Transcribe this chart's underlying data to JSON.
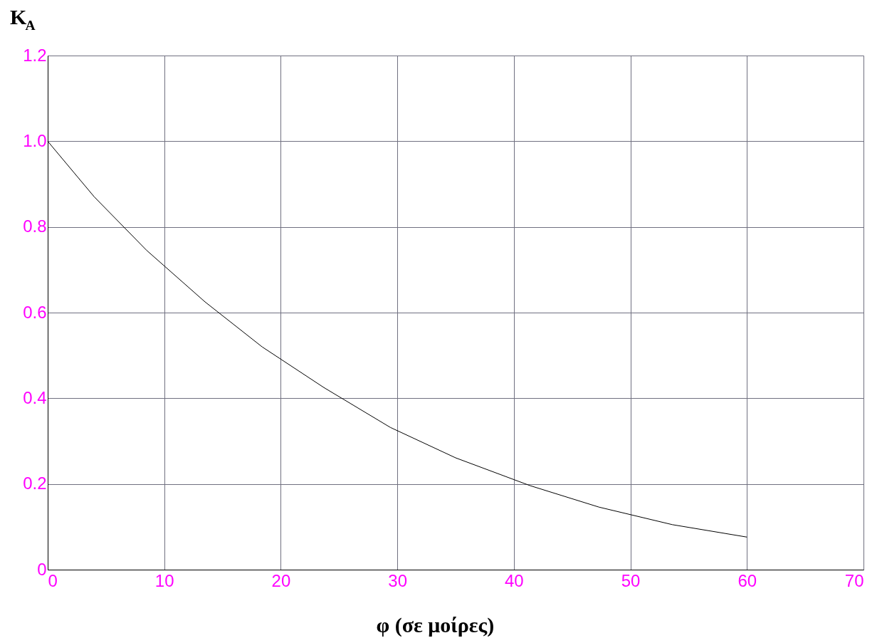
{
  "chart_data": {
    "type": "line",
    "xlabel": "φ (σε μοίρες)",
    "ylabel": "K$_{A}$",
    "x": [
      0,
      4.0,
      8.5,
      13.5,
      18.4,
      23.7,
      29.4,
      35.0,
      41.4,
      47.3,
      53.6,
      60.0
    ],
    "series": [
      {
        "color": "#000000",
        "values": [
          1.0,
          0.87,
          0.745,
          0.625,
          0.52,
          0.425,
          0.332,
          0.261,
          0.196,
          0.146,
          0.105,
          0.076
        ]
      }
    ],
    "xlim": [
      0,
      70
    ],
    "xticks": [
      0,
      10,
      20,
      30,
      40,
      50,
      60,
      70
    ],
    "ylim": [
      0,
      1.2
    ],
    "yticks": [
      {
        "value": 0,
        "label": "0"
      },
      {
        "value": 0.2,
        "label": "0.2"
      },
      {
        "value": 0.4,
        "label": "0.4"
      },
      {
        "value": 0.6,
        "label": "0.6"
      },
      {
        "value": 0.8,
        "label": "0.8"
      },
      {
        "value": 1.0,
        "label": "1.0"
      },
      {
        "value": 1.2,
        "label": "1.2"
      }
    ],
    "grid": true,
    "marker": "none",
    "line_style": "solid"
  }
}
